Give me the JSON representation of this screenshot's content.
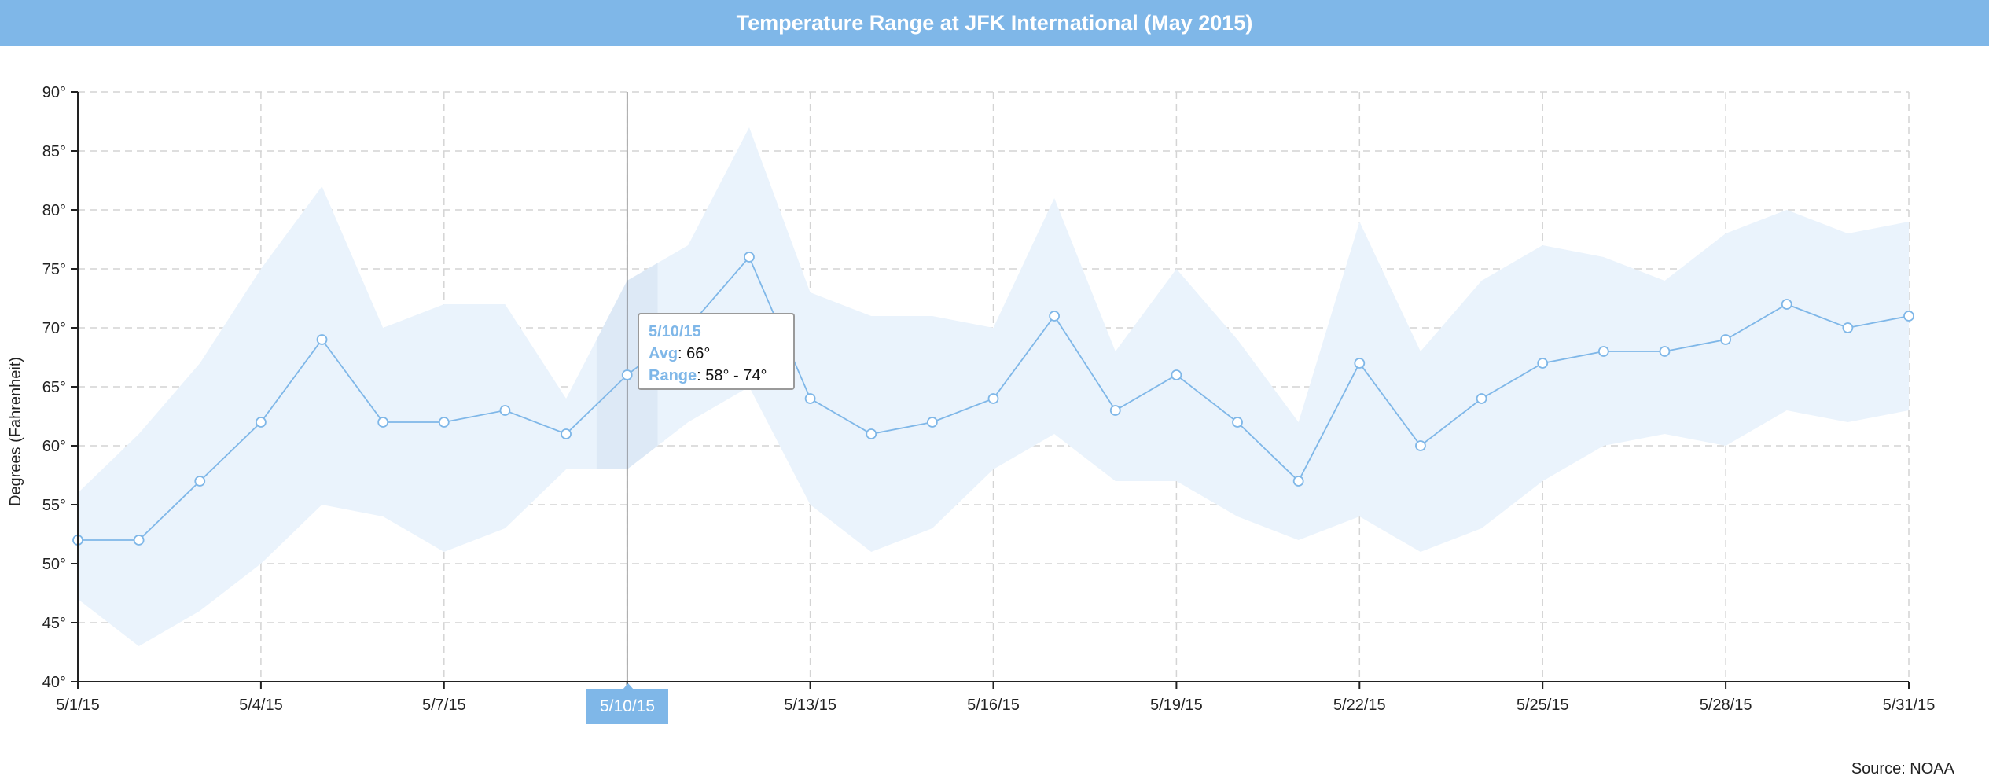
{
  "chart_data": {
    "type": "area",
    "title": "Temperature Range at JFK International (May 2015)",
    "ylabel": "Degrees (Fahrenheit)",
    "xlabel": "",
    "source": "Source: NOAA",
    "x": [
      "5/1/15",
      "5/2/15",
      "5/3/15",
      "5/4/15",
      "5/5/15",
      "5/6/15",
      "5/7/15",
      "5/8/15",
      "5/9/15",
      "5/10/15",
      "5/11/15",
      "5/12/15",
      "5/13/15",
      "5/14/15",
      "5/15/15",
      "5/16/15",
      "5/17/15",
      "5/18/15",
      "5/19/15",
      "5/20/15",
      "5/21/15",
      "5/22/15",
      "5/23/15",
      "5/24/15",
      "5/25/15",
      "5/26/15",
      "5/27/15",
      "5/28/15",
      "5/29/15",
      "5/30/15",
      "5/31/15"
    ],
    "x_tick_labels": [
      "5/1/15",
      "5/4/15",
      "5/7/15",
      "5/10/15",
      "5/13/15",
      "5/16/15",
      "5/19/15",
      "5/22/15",
      "5/25/15",
      "5/28/15",
      "5/31/15"
    ],
    "y_tick_labels": [
      "40°",
      "45°",
      "50°",
      "55°",
      "60°",
      "65°",
      "70°",
      "75°",
      "80°",
      "85°",
      "90°"
    ],
    "ylim": [
      40,
      90
    ],
    "grid": true,
    "series": [
      {
        "type": "line",
        "values": [
          52,
          52,
          57,
          62,
          69,
          62,
          62,
          63,
          61,
          66,
          70,
          76,
          64,
          61,
          62,
          64,
          71,
          63,
          66,
          62,
          57,
          67,
          60,
          64,
          67,
          68,
          68,
          69,
          72,
          70,
          71
        ]
      },
      {
        "type": "range",
        "low": [
          47,
          43,
          46,
          50,
          55,
          54,
          51,
          53,
          58,
          58,
          62,
          65,
          55,
          51,
          53,
          58,
          61,
          57,
          57,
          54,
          52,
          54,
          51,
          53,
          57,
          60,
          61,
          60,
          63,
          62,
          63
        ],
        "high": [
          56,
          61,
          67,
          75,
          82,
          70,
          72,
          72,
          64,
          74,
          77,
          87,
          73,
          71,
          71,
          70,
          81,
          68,
          75,
          69,
          62,
          79,
          68,
          74,
          77,
          76,
          74,
          78,
          80,
          78,
          79
        ]
      }
    ],
    "colors": {
      "accent": "#7fb7e8",
      "band": "#eaf3fc",
      "band_highlight": "#dde9f6",
      "line": "#7fb7e8"
    },
    "hover": {
      "date": "5/10/15",
      "avg_label": "Avg",
      "avg_text": ": 66°",
      "range_label": "Range",
      "range_text": ": 58° - 74°"
    }
  }
}
